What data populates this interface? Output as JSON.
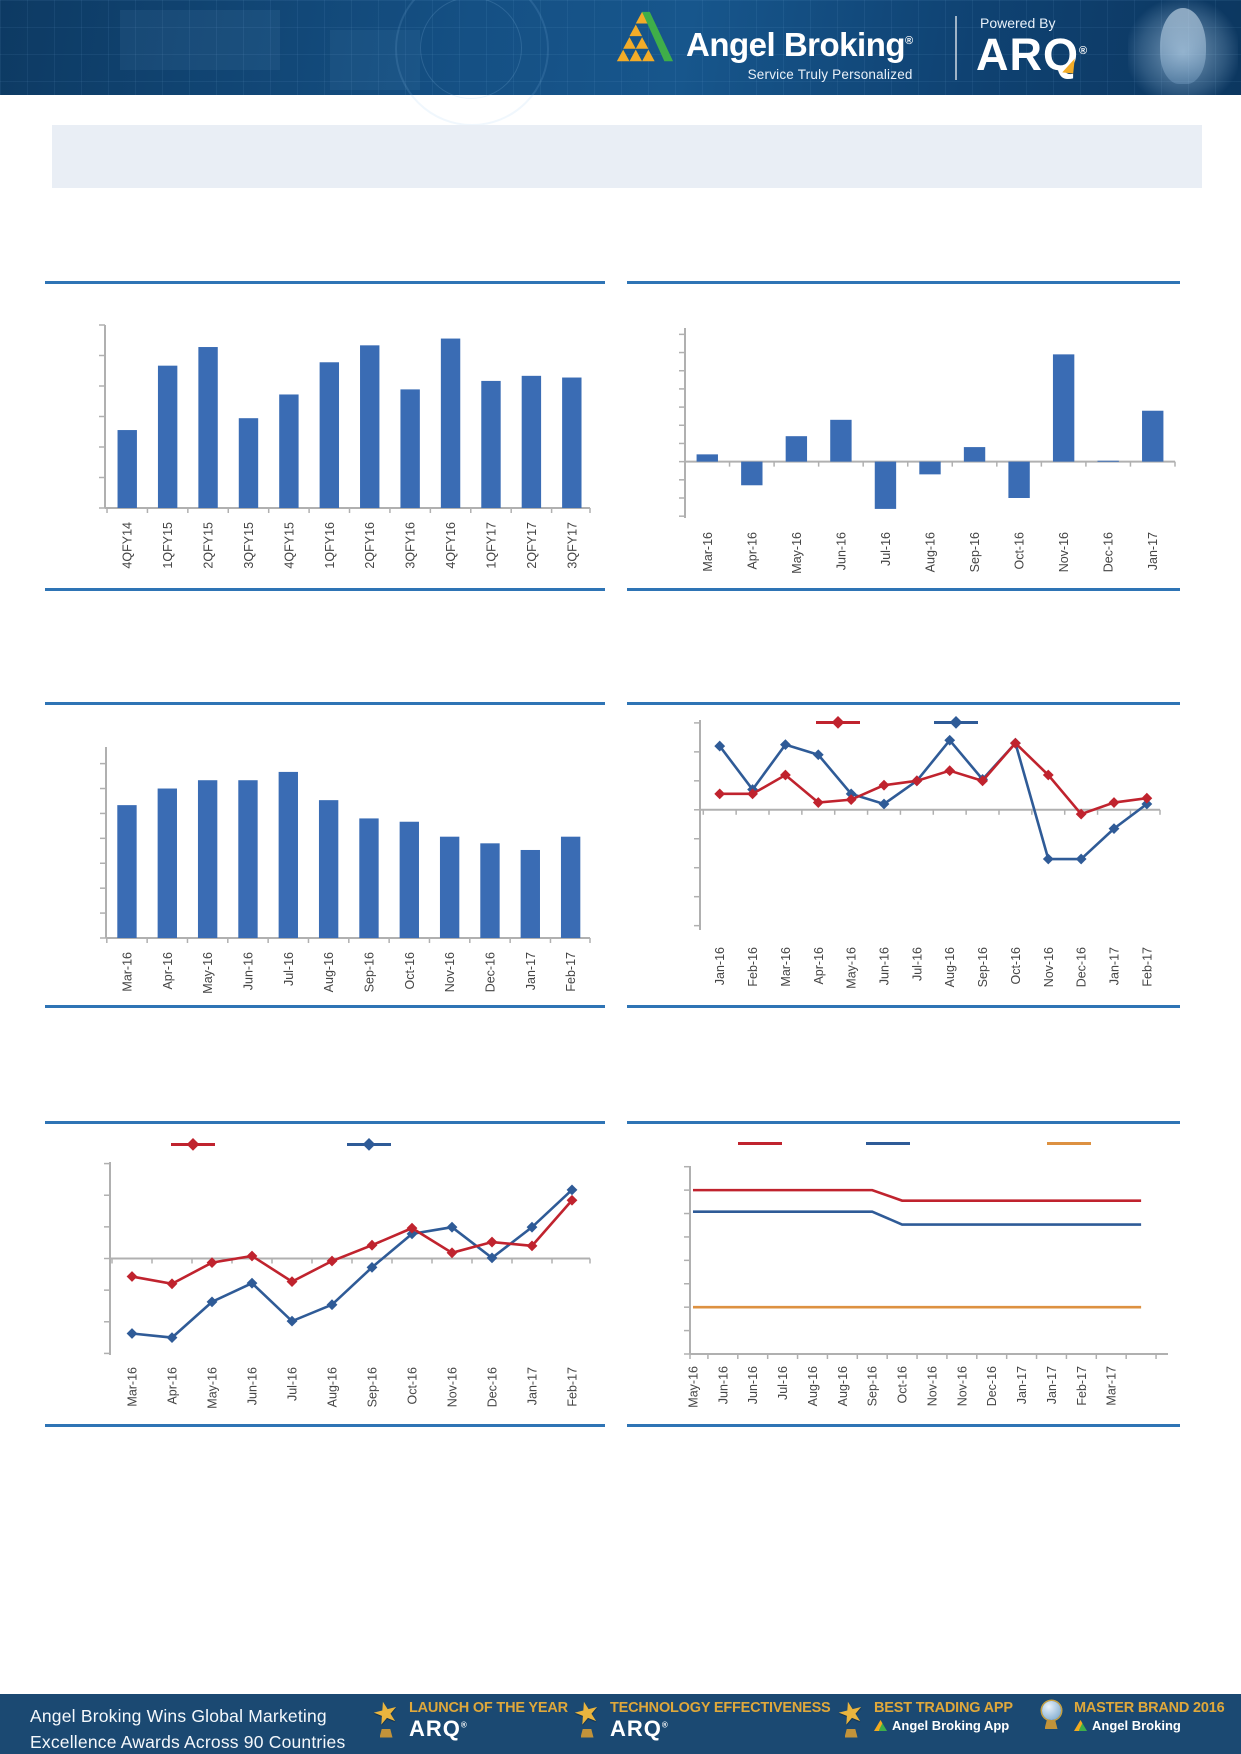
{
  "header": {
    "brand_name": "Angel Broking",
    "brand_reg": "®",
    "tagline": "Service Truly Personalized",
    "powered_by": "Powered By",
    "powered_brand": "ARQ",
    "powered_reg": "®"
  },
  "banner": {
    "text": ""
  },
  "colors": {
    "bar_blue": "#3a6cb4",
    "line_red": "#c0232e",
    "line_blue": "#2f5b97",
    "line_orange": "#dd9141",
    "rule_blue": "#2e74b5",
    "header_navy": "#123f6b",
    "footer_navy": "#1b4972",
    "gold": "#dca73f",
    "banner_bg": "#e9eef5"
  },
  "chart_data": [
    {
      "id": "quarterly-bars",
      "type": "bar",
      "title": "",
      "categories": [
        "4QFY14",
        "1QFY15",
        "2QFY15",
        "3QFY15",
        "4QFY15",
        "1QFY16",
        "2QFY16",
        "3QFY16",
        "4QFY16",
        "1QFY17",
        "2QFY17",
        "3QFY17"
      ],
      "values": [
        46,
        84,
        95,
        53,
        67,
        86,
        96,
        70,
        100,
        75,
        78,
        77
      ],
      "ylim": [
        0,
        108
      ],
      "ytick_step": 18,
      "y_tick_labels": "none",
      "grid": false,
      "color": "#3a6cb4"
    },
    {
      "id": "monthly-change-bars",
      "type": "bar",
      "title": "",
      "categories": [
        "Mar-16",
        "Apr-16",
        "May-16",
        "Jun-16",
        "Jul-16",
        "Aug-16",
        "Sep-16",
        "Oct-16",
        "Nov-16",
        "Dec-16",
        "Jan-17"
      ],
      "values": [
        0.4,
        -1.3,
        1.4,
        2.3,
        -2.6,
        -0.7,
        0.8,
        -2.0,
        5.9,
        0.05,
        2.8
      ],
      "ylim": [
        -3.1,
        7.35
      ],
      "ytick_step": 1,
      "y_tick_labels": "none",
      "grid": false,
      "color": "#3a6cb4"
    },
    {
      "id": "monthly-trend-bars",
      "type": "bar",
      "title": "",
      "categories": [
        "Mar-16",
        "Apr-16",
        "May-16",
        "Jun-16",
        "Jul-16",
        "Aug-16",
        "Sep-16",
        "Oct-16",
        "Nov-16",
        "Dec-16",
        "Jan-17",
        "Feb-17"
      ],
      "values": [
        80,
        90,
        95,
        95,
        100,
        83,
        72,
        70,
        61,
        57,
        53,
        61
      ],
      "ylim": [
        0,
        115
      ],
      "ytick_step": 15,
      "y_tick_labels": "none",
      "grid": false,
      "color": "#3a6cb4"
    },
    {
      "id": "dual-line-monthly",
      "type": "line",
      "title": "",
      "categories": [
        "Jan-16",
        "Feb-16",
        "Mar-16",
        "Apr-16",
        "May-16",
        "Jun-16",
        "Jul-16",
        "Aug-16",
        "Sep-16",
        "Oct-16",
        "Nov-16",
        "Dec-16",
        "Jan-17",
        "Feb-17"
      ],
      "series": [
        {
          "name": "blue",
          "color": "#2f5b97",
          "marker": "diamond",
          "values": [
            2.2,
            0.7,
            2.25,
            1.9,
            0.55,
            0.2,
            1.0,
            2.4,
            1.05,
            2.3,
            -1.7,
            -1.7,
            -0.65,
            0.2
          ]
        },
        {
          "name": "red",
          "color": "#c0232e",
          "marker": "diamond",
          "values": [
            0.55,
            0.55,
            1.2,
            0.25,
            0.35,
            0.85,
            1.0,
            1.35,
            1.0,
            2.3,
            1.2,
            -0.15,
            0.25,
            0.4
          ]
        }
      ],
      "ylim": [
        -4.15,
        3.1
      ],
      "ytick_step": 1,
      "y_tick_labels": "none",
      "grid": false,
      "legend_position": "top",
      "legend_labels_visible": false
    },
    {
      "id": "dual-line-cumulative",
      "type": "line",
      "title": "",
      "categories": [
        "Mar-16",
        "Apr-16",
        "May-16",
        "Jun-16",
        "Jul-16",
        "Aug-16",
        "Sep-16",
        "Oct-16",
        "Nov-16",
        "Dec-16",
        "Jan-17",
        "Feb-17"
      ],
      "series": [
        {
          "name": "blue",
          "color": "#2f5b97",
          "marker": "diamond",
          "values": [
            -2.37,
            -2.5,
            -1.37,
            -0.78,
            -1.98,
            -1.46,
            -0.28,
            0.78,
            0.99,
            0.02,
            0.99,
            2.17
          ]
        },
        {
          "name": "red",
          "color": "#c0232e",
          "marker": "diamond",
          "values": [
            -0.57,
            -0.8,
            -0.13,
            0.08,
            -0.73,
            -0.08,
            0.42,
            0.96,
            0.18,
            0.52,
            0.4,
            1.84
          ]
        }
      ],
      "ylim": [
        -3.05,
        3.05
      ],
      "ytick_step": 1,
      "y_tick_labels": "none",
      "grid": false,
      "legend_position": "top",
      "legend_labels_visible": false
    },
    {
      "id": "rate-lines",
      "type": "line",
      "title": "",
      "categories": [
        "May-16",
        "Jun-16",
        "Jun-16",
        "Jul-16",
        "Aug-16",
        "Aug-16",
        "Sep-16",
        "Oct-16",
        "Nov-16",
        "Nov-16",
        "Dec-16",
        "Jan-17",
        "Jan-17",
        "Feb-17",
        "Mar-17",
        ""
      ],
      "series": [
        {
          "name": "red",
          "color": "#c0232e",
          "marker": "none",
          "values": [
            7.0,
            7.0,
            7.0,
            7.0,
            7.0,
            7.0,
            7.0,
            6.55,
            6.55,
            6.55,
            6.55,
            6.55,
            6.55,
            6.55,
            6.55,
            6.55
          ]
        },
        {
          "name": "blue",
          "color": "#2f5b97",
          "marker": "none",
          "values": [
            6.08,
            6.08,
            6.08,
            6.08,
            6.08,
            6.08,
            6.08,
            5.53,
            5.53,
            5.53,
            5.53,
            5.53,
            5.53,
            5.53,
            5.53,
            5.53
          ]
        },
        {
          "name": "orange",
          "color": "#dd9141",
          "marker": "none",
          "values": [
            2.0,
            2.0,
            2.0,
            2.0,
            2.0,
            2.0,
            2.0,
            2.0,
            2.0,
            2.0,
            2.0,
            2.0,
            2.0,
            2.0,
            2.0,
            2.0
          ]
        }
      ],
      "ylim": [
        0,
        8.03
      ],
      "ytick_step": 1,
      "y_tick_labels": "none",
      "grid": false,
      "legend_position": "top",
      "legend_labels_visible": false
    }
  ],
  "footer": {
    "headline_line1": "Angel Broking Wins Global Marketing",
    "headline_line2": "Excellence Awards Across 90 Countries",
    "awards": [
      {
        "title": "LAUNCH OF THE YEAR",
        "subtitle": "ARQ",
        "subtitle_reg": "®",
        "icon": "star-trophy"
      },
      {
        "title": "TECHNOLOGY EFFECTIVENESS",
        "subtitle": "ARQ",
        "subtitle_reg": "®",
        "icon": "star-trophy"
      },
      {
        "title": "BEST TRADING APP",
        "subtitle": "Angel Broking App",
        "icon": "star-trophy",
        "subtitle_logo": "angel-triangle"
      },
      {
        "title": "MASTER BRAND 2016",
        "subtitle": "Angel Broking",
        "icon": "globe-trophy",
        "subtitle_logo": "angel-triangle"
      }
    ]
  }
}
